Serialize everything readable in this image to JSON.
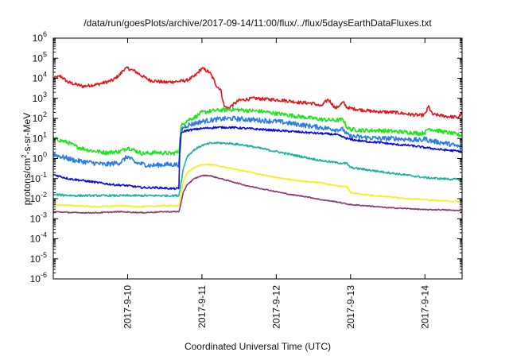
{
  "chart_data": {
    "type": "line",
    "title": "/data/run/goesPlots/archive/2017-09-14/11:00/flux/../flux/5daysEarthDataFluxes.txt",
    "xlabel": "Coordinated Universal Time (UTC)",
    "ylabel_parts": [
      "protons/cm",
      "2",
      "-s-sr-MeV"
    ],
    "y_scale": "log",
    "xlim": [
      0.0,
      5.5
    ],
    "ylim_exp": [
      -6,
      6
    ],
    "y_ticks": [
      {
        "base": "10",
        "exp": "6"
      },
      {
        "base": "10",
        "exp": "5"
      },
      {
        "base": "10",
        "exp": "4"
      },
      {
        "base": "10",
        "exp": "3"
      },
      {
        "base": "10",
        "exp": "2"
      },
      {
        "base": "10",
        "exp": "1"
      },
      {
        "base": "10",
        "exp": "0"
      },
      {
        "base": "10",
        "exp": "-1"
      },
      {
        "base": "10",
        "exp": "-2"
      },
      {
        "base": "10",
        "exp": "-3"
      },
      {
        "base": "10",
        "exp": "-4"
      },
      {
        "base": "10",
        "exp": "-5"
      },
      {
        "base": "10",
        "exp": "-6"
      }
    ],
    "x_ticks": [
      {
        "label": "2017-9-10",
        "x": 1.0
      },
      {
        "label": "2017-9-11",
        "x": 2.0
      },
      {
        "label": "2017-9-12",
        "x": 3.0
      },
      {
        "label": "2017-9-13",
        "x": 4.0
      },
      {
        "label": "2017-9-14",
        "x": 5.0
      }
    ],
    "grid": false,
    "series": [
      {
        "color": "#e8141c",
        "noise": 0.08,
        "points": [
          [
            0,
            4.0
          ],
          [
            0.1,
            4.1
          ],
          [
            0.2,
            3.8
          ],
          [
            0.4,
            3.6
          ],
          [
            0.6,
            3.7
          ],
          [
            0.8,
            3.9
          ],
          [
            0.9,
            4.2
          ],
          [
            0.95,
            4.45
          ],
          [
            1.0,
            4.5
          ],
          [
            1.1,
            4.35
          ],
          [
            1.2,
            4.1
          ],
          [
            1.3,
            3.9
          ],
          [
            1.5,
            3.8
          ],
          [
            1.7,
            3.85
          ],
          [
            1.8,
            3.9
          ],
          [
            1.9,
            4.1
          ],
          [
            2.0,
            4.5
          ],
          [
            2.1,
            4.3
          ],
          [
            2.15,
            4.0
          ],
          [
            2.2,
            3.6
          ],
          [
            2.25,
            3.45
          ],
          [
            2.3,
            2.6
          ],
          [
            2.35,
            2.5
          ],
          [
            2.5,
            2.9
          ],
          [
            2.7,
            3.0
          ],
          [
            2.9,
            2.95
          ],
          [
            3.1,
            2.9
          ],
          [
            3.3,
            2.8
          ],
          [
            3.5,
            2.75
          ],
          [
            3.6,
            2.6
          ],
          [
            3.7,
            2.95
          ],
          [
            3.8,
            2.5
          ],
          [
            3.9,
            2.8
          ],
          [
            3.95,
            2.55
          ],
          [
            4.0,
            2.5
          ],
          [
            4.1,
            2.45
          ],
          [
            4.3,
            2.35
          ],
          [
            4.6,
            2.3
          ],
          [
            4.8,
            2.2
          ],
          [
            4.95,
            2.15
          ],
          [
            5.0,
            2.2
          ],
          [
            5.05,
            2.6
          ],
          [
            5.1,
            2.2
          ],
          [
            5.3,
            2.1
          ],
          [
            5.45,
            2.05
          ],
          [
            5.5,
            2.3
          ]
        ]
      },
      {
        "color": "#1ae61a",
        "noise": 0.1,
        "points": [
          [
            0,
            1.0
          ],
          [
            0.1,
            0.9
          ],
          [
            0.2,
            0.8
          ],
          [
            0.3,
            0.6
          ],
          [
            0.5,
            0.4
          ],
          [
            0.7,
            0.3
          ],
          [
            0.9,
            0.35
          ],
          [
            1.0,
            0.55
          ],
          [
            1.1,
            0.4
          ],
          [
            1.2,
            0.25
          ],
          [
            1.4,
            0.3
          ],
          [
            1.6,
            0.25
          ],
          [
            1.69,
            0.35
          ],
          [
            1.7,
            0.8
          ],
          [
            1.72,
            1.6
          ],
          [
            1.75,
            1.75
          ],
          [
            1.8,
            1.9
          ],
          [
            1.9,
            2.05
          ],
          [
            2.0,
            2.3
          ],
          [
            2.2,
            2.4
          ],
          [
            2.4,
            2.45
          ],
          [
            2.6,
            2.4
          ],
          [
            2.8,
            2.35
          ],
          [
            3.0,
            2.25
          ],
          [
            3.2,
            2.15
          ],
          [
            3.4,
            2.05
          ],
          [
            3.6,
            1.95
          ],
          [
            3.8,
            1.9
          ],
          [
            3.9,
            1.95
          ],
          [
            3.95,
            1.55
          ],
          [
            4.0,
            1.45
          ],
          [
            4.2,
            1.4
          ],
          [
            4.4,
            1.4
          ],
          [
            4.6,
            1.35
          ],
          [
            4.8,
            1.3
          ],
          [
            4.95,
            1.25
          ],
          [
            5.0,
            1.3
          ],
          [
            5.05,
            1.5
          ],
          [
            5.1,
            1.45
          ],
          [
            5.3,
            1.3
          ],
          [
            5.5,
            1.15
          ]
        ]
      },
      {
        "color": "#2a7de6",
        "noise": 0.12,
        "points": [
          [
            0,
            0.2
          ],
          [
            0.1,
            0.1
          ],
          [
            0.3,
            -0.1
          ],
          [
            0.5,
            -0.2
          ],
          [
            0.7,
            -0.3
          ],
          [
            0.9,
            -0.2
          ],
          [
            1.0,
            0.1
          ],
          [
            1.1,
            -0.2
          ],
          [
            1.3,
            -0.35
          ],
          [
            1.5,
            -0.3
          ],
          [
            1.69,
            -0.3
          ],
          [
            1.7,
            0.5
          ],
          [
            1.72,
            1.4
          ],
          [
            1.75,
            1.55
          ],
          [
            1.8,
            1.65
          ],
          [
            1.9,
            1.75
          ],
          [
            2.0,
            1.85
          ],
          [
            2.2,
            1.95
          ],
          [
            2.4,
            2.0
          ],
          [
            2.6,
            1.95
          ],
          [
            2.8,
            1.9
          ],
          [
            3.0,
            1.85
          ],
          [
            3.2,
            1.75
          ],
          [
            3.4,
            1.65
          ],
          [
            3.6,
            1.55
          ],
          [
            3.8,
            1.45
          ],
          [
            3.9,
            1.45
          ],
          [
            3.95,
            1.2
          ],
          [
            4.0,
            1.1
          ],
          [
            4.2,
            1.05
          ],
          [
            4.4,
            1.0
          ],
          [
            4.6,
            1.0
          ],
          [
            4.8,
            0.95
          ],
          [
            4.95,
            0.9
          ],
          [
            5.0,
            1.0
          ],
          [
            5.05,
            0.9
          ],
          [
            5.3,
            0.75
          ],
          [
            5.5,
            0.55
          ]
        ]
      },
      {
        "color": "#0d0dd8",
        "noise": 0.05,
        "points": [
          [
            0,
            -0.8
          ],
          [
            0.2,
            -1.0
          ],
          [
            0.4,
            -1.1
          ],
          [
            0.6,
            -1.2
          ],
          [
            0.8,
            -1.3
          ],
          [
            1.0,
            -1.35
          ],
          [
            1.2,
            -1.45
          ],
          [
            1.4,
            -1.45
          ],
          [
            1.6,
            -1.5
          ],
          [
            1.69,
            -1.5
          ],
          [
            1.7,
            0.2
          ],
          [
            1.72,
            1.2
          ],
          [
            1.75,
            1.35
          ],
          [
            1.8,
            1.4
          ],
          [
            1.9,
            1.45
          ],
          [
            2.0,
            1.5
          ],
          [
            2.2,
            1.55
          ],
          [
            2.4,
            1.55
          ],
          [
            2.6,
            1.5
          ],
          [
            2.8,
            1.45
          ],
          [
            3.0,
            1.4
          ],
          [
            3.2,
            1.35
          ],
          [
            3.4,
            1.3
          ],
          [
            3.6,
            1.25
          ],
          [
            3.8,
            1.2
          ],
          [
            3.95,
            1.0
          ],
          [
            4.0,
            0.95
          ],
          [
            4.2,
            0.85
          ],
          [
            4.4,
            0.8
          ],
          [
            4.6,
            0.7
          ],
          [
            4.8,
            0.65
          ],
          [
            5.0,
            0.55
          ],
          [
            5.2,
            0.45
          ],
          [
            5.5,
            0.35
          ]
        ]
      },
      {
        "color": "#1ab2a0",
        "noise": 0.05,
        "points": [
          [
            0,
            -1.8
          ],
          [
            0.3,
            -1.85
          ],
          [
            0.6,
            -1.85
          ],
          [
            0.9,
            -1.85
          ],
          [
            1.2,
            -1.85
          ],
          [
            1.5,
            -1.85
          ],
          [
            1.69,
            -1.85
          ],
          [
            1.72,
            -1.2
          ],
          [
            1.75,
            -0.5
          ],
          [
            1.8,
            0.1
          ],
          [
            1.9,
            0.45
          ],
          [
            2.0,
            0.65
          ],
          [
            2.1,
            0.75
          ],
          [
            2.2,
            0.78
          ],
          [
            2.4,
            0.75
          ],
          [
            2.6,
            0.65
          ],
          [
            2.8,
            0.5
          ],
          [
            3.0,
            0.35
          ],
          [
            3.2,
            0.2
          ],
          [
            3.4,
            0.05
          ],
          [
            3.6,
            -0.1
          ],
          [
            3.8,
            -0.2
          ],
          [
            3.95,
            -0.25
          ],
          [
            4.0,
            -0.45
          ],
          [
            4.2,
            -0.55
          ],
          [
            4.4,
            -0.65
          ],
          [
            4.6,
            -0.75
          ],
          [
            4.8,
            -0.85
          ],
          [
            5.0,
            -0.95
          ],
          [
            5.2,
            -1.0
          ],
          [
            5.5,
            -1.05
          ]
        ]
      },
      {
        "color": "#f2f21a",
        "noise": 0.03,
        "points": [
          [
            0,
            -2.3
          ],
          [
            0.3,
            -2.35
          ],
          [
            0.6,
            -2.4
          ],
          [
            0.9,
            -2.35
          ],
          [
            1.2,
            -2.4
          ],
          [
            1.5,
            -2.35
          ],
          [
            1.69,
            -2.35
          ],
          [
            1.72,
            -1.8
          ],
          [
            1.75,
            -1.2
          ],
          [
            1.8,
            -0.7
          ],
          [
            1.9,
            -0.45
          ],
          [
            2.0,
            -0.3
          ],
          [
            2.1,
            -0.3
          ],
          [
            2.2,
            -0.35
          ],
          [
            2.4,
            -0.5
          ],
          [
            2.6,
            -0.65
          ],
          [
            2.8,
            -0.8
          ],
          [
            3.0,
            -0.95
          ],
          [
            3.2,
            -1.05
          ],
          [
            3.4,
            -1.15
          ],
          [
            3.6,
            -1.2
          ],
          [
            3.8,
            -1.35
          ],
          [
            3.95,
            -1.4
          ],
          [
            4.0,
            -1.7
          ],
          [
            4.2,
            -1.8
          ],
          [
            4.5,
            -1.9
          ],
          [
            4.8,
            -2.0
          ],
          [
            5.0,
            -2.05
          ],
          [
            5.2,
            -2.1
          ],
          [
            5.5,
            -2.15
          ]
        ]
      },
      {
        "color": "#8b3a6e",
        "noise": 0.025,
        "points": [
          [
            0,
            -2.65
          ],
          [
            0.3,
            -2.7
          ],
          [
            0.6,
            -2.7
          ],
          [
            0.9,
            -2.65
          ],
          [
            1.2,
            -2.7
          ],
          [
            1.5,
            -2.65
          ],
          [
            1.69,
            -2.65
          ],
          [
            1.72,
            -2.2
          ],
          [
            1.75,
            -1.7
          ],
          [
            1.8,
            -1.3
          ],
          [
            1.9,
            -1.0
          ],
          [
            2.0,
            -0.85
          ],
          [
            2.1,
            -0.85
          ],
          [
            2.2,
            -0.95
          ],
          [
            2.4,
            -1.15
          ],
          [
            2.6,
            -1.35
          ],
          [
            2.8,
            -1.5
          ],
          [
            3.0,
            -1.65
          ],
          [
            3.2,
            -1.8
          ],
          [
            3.4,
            -1.9
          ],
          [
            3.6,
            -2.05
          ],
          [
            3.8,
            -2.15
          ],
          [
            4.0,
            -2.3
          ],
          [
            4.2,
            -2.35
          ],
          [
            4.5,
            -2.45
          ],
          [
            4.8,
            -2.5
          ],
          [
            5.0,
            -2.55
          ],
          [
            5.2,
            -2.55
          ],
          [
            5.5,
            -2.6
          ]
        ]
      }
    ]
  }
}
